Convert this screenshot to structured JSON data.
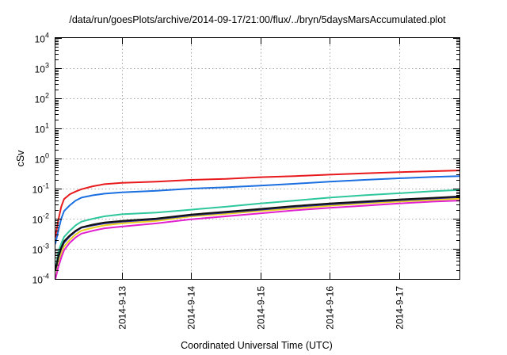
{
  "chart_data": {
    "type": "line",
    "title": "/data/run/goesPlots/archive/2014-09-17/21:00/flux/../bryn/5daysMarsAccumulated.plot",
    "xlabel": "Coordinated Universal Time (UTC)",
    "ylabel": "cSv",
    "yscale": "log",
    "xlim": [
      "2014-09-12T01:00",
      "2014-09-17T21:00"
    ],
    "ylim": [
      0.0001,
      10000
    ],
    "grid": true,
    "legend": "none",
    "y_ticks": [
      {
        "value": 0.0001,
        "base": "10",
        "exp": "-4"
      },
      {
        "value": 0.001,
        "base": "10",
        "exp": "-3"
      },
      {
        "value": 0.01,
        "base": "10",
        "exp": "-2"
      },
      {
        "value": 0.1,
        "base": "10",
        "exp": "-1"
      },
      {
        "value": 1,
        "base": "10",
        "exp": "0"
      },
      {
        "value": 10,
        "base": "10",
        "exp": "1"
      },
      {
        "value": 100,
        "base": "10",
        "exp": "2"
      },
      {
        "value": 1000,
        "base": "10",
        "exp": "3"
      },
      {
        "value": 10000,
        "base": "10",
        "exp": "4"
      }
    ],
    "x_ticks": [
      {
        "value": "2014-09-13T00:00",
        "label": "2014-9-13"
      },
      {
        "value": "2014-09-14T00:00",
        "label": "2014-9-14"
      },
      {
        "value": "2014-09-15T00:00",
        "label": "2014-9-15"
      },
      {
        "value": "2014-09-16T00:00",
        "label": "2014-9-16"
      },
      {
        "value": "2014-09-17T00:00",
        "label": "2014-9-17"
      }
    ],
    "series": [
      {
        "color": "#e8191c",
        "points": [
          [
            "2014-09-12T01:00",
            0.0025
          ],
          [
            "2014-09-12T02:00",
            0.009
          ],
          [
            "2014-09-12T03:00",
            0.025
          ],
          [
            "2014-09-12T04:00",
            0.045
          ],
          [
            "2014-09-12T06:00",
            0.065
          ],
          [
            "2014-09-12T08:00",
            0.08
          ],
          [
            "2014-09-12T10:00",
            0.095
          ],
          [
            "2014-09-12T14:00",
            0.12
          ],
          [
            "2014-09-12T18:00",
            0.14
          ],
          [
            "2014-09-13T00:00",
            0.155
          ],
          [
            "2014-09-13T12:00",
            0.17
          ],
          [
            "2014-09-14T00:00",
            0.195
          ],
          [
            "2014-09-14T12:00",
            0.21
          ],
          [
            "2014-09-15T00:00",
            0.24
          ],
          [
            "2014-09-15T12:00",
            0.26
          ],
          [
            "2014-09-16T00:00",
            0.29
          ],
          [
            "2014-09-16T12:00",
            0.32
          ],
          [
            "2014-09-17T00:00",
            0.35
          ],
          [
            "2014-09-17T12:00",
            0.38
          ],
          [
            "2014-09-17T21:00",
            0.4
          ]
        ]
      },
      {
        "color": "#1b6fe0",
        "points": [
          [
            "2014-09-12T01:00",
            0.0015
          ],
          [
            "2014-09-12T02:00",
            0.004
          ],
          [
            "2014-09-12T03:00",
            0.01
          ],
          [
            "2014-09-12T04:00",
            0.018
          ],
          [
            "2014-09-12T06:00",
            0.028
          ],
          [
            "2014-09-12T08:00",
            0.04
          ],
          [
            "2014-09-12T10:00",
            0.05
          ],
          [
            "2014-09-12T14:00",
            0.06
          ],
          [
            "2014-09-12T18:00",
            0.068
          ],
          [
            "2014-09-13T00:00",
            0.075
          ],
          [
            "2014-09-13T12:00",
            0.085
          ],
          [
            "2014-09-14T00:00",
            0.1
          ],
          [
            "2014-09-14T12:00",
            0.11
          ],
          [
            "2014-09-15T00:00",
            0.125
          ],
          [
            "2014-09-15T12:00",
            0.145
          ],
          [
            "2014-09-16T00:00",
            0.17
          ],
          [
            "2014-09-16T12:00",
            0.195
          ],
          [
            "2014-09-17T00:00",
            0.22
          ],
          [
            "2014-09-17T12:00",
            0.245
          ],
          [
            "2014-09-17T21:00",
            0.26
          ]
        ]
      },
      {
        "color": "#2ec79c",
        "points": [
          [
            "2014-09-12T01:00",
            0.0002
          ],
          [
            "2014-09-12T02:00",
            0.0008
          ],
          [
            "2014-09-12T03:00",
            0.0015
          ],
          [
            "2014-09-12T04:00",
            0.0025
          ],
          [
            "2014-09-12T06:00",
            0.004
          ],
          [
            "2014-09-12T08:00",
            0.006
          ],
          [
            "2014-09-12T10:00",
            0.008
          ],
          [
            "2014-09-12T14:00",
            0.01
          ],
          [
            "2014-09-12T18:00",
            0.012
          ],
          [
            "2014-09-13T00:00",
            0.014
          ],
          [
            "2014-09-13T12:00",
            0.016
          ],
          [
            "2014-09-14T00:00",
            0.02
          ],
          [
            "2014-09-14T12:00",
            0.025
          ],
          [
            "2014-09-15T00:00",
            0.032
          ],
          [
            "2014-09-15T12:00",
            0.04
          ],
          [
            "2014-09-16T00:00",
            0.05
          ],
          [
            "2014-09-16T12:00",
            0.06
          ],
          [
            "2014-09-17T00:00",
            0.07
          ],
          [
            "2014-09-17T12:00",
            0.082
          ],
          [
            "2014-09-17T21:00",
            0.09
          ]
        ]
      },
      {
        "color": "#e8d020",
        "points": [
          [
            "2014-09-12T01:00",
            0.0001
          ],
          [
            "2014-09-12T02:00",
            0.0003
          ],
          [
            "2014-09-12T03:00",
            0.0007
          ],
          [
            "2014-09-12T04:00",
            0.0012
          ],
          [
            "2014-09-12T06:00",
            0.002
          ],
          [
            "2014-09-12T08:00",
            0.003
          ],
          [
            "2014-09-12T10:00",
            0.004
          ],
          [
            "2014-09-12T14:00",
            0.005
          ],
          [
            "2014-09-12T18:00",
            0.006
          ],
          [
            "2014-09-13T00:00",
            0.007
          ],
          [
            "2014-09-13T12:00",
            0.0085
          ],
          [
            "2014-09-14T00:00",
            0.012
          ],
          [
            "2014-09-14T12:00",
            0.0145
          ],
          [
            "2014-09-15T00:00",
            0.018
          ],
          [
            "2014-09-15T12:00",
            0.022
          ],
          [
            "2014-09-16T00:00",
            0.027
          ],
          [
            "2014-09-16T12:00",
            0.032
          ],
          [
            "2014-09-17T00:00",
            0.037
          ],
          [
            "2014-09-17T12:00",
            0.042
          ],
          [
            "2014-09-17T21:00",
            0.046
          ]
        ]
      },
      {
        "color": "#e020d0",
        "points": [
          [
            "2014-09-12T01:00",
            0.0001
          ],
          [
            "2014-09-12T02:00",
            0.00025
          ],
          [
            "2014-09-12T03:00",
            0.0005
          ],
          [
            "2014-09-12T04:00",
            0.0009
          ],
          [
            "2014-09-12T06:00",
            0.0016
          ],
          [
            "2014-09-12T08:00",
            0.0024
          ],
          [
            "2014-09-12T10:00",
            0.0032
          ],
          [
            "2014-09-12T14:00",
            0.004
          ],
          [
            "2014-09-12T18:00",
            0.0048
          ],
          [
            "2014-09-13T00:00",
            0.0055
          ],
          [
            "2014-09-13T12:00",
            0.007
          ],
          [
            "2014-09-14T00:00",
            0.0095
          ],
          [
            "2014-09-14T12:00",
            0.012
          ],
          [
            "2014-09-15T00:00",
            0.015
          ],
          [
            "2014-09-15T12:00",
            0.019
          ],
          [
            "2014-09-16T00:00",
            0.023
          ],
          [
            "2014-09-16T12:00",
            0.027
          ],
          [
            "2014-09-17T00:00",
            0.032
          ],
          [
            "2014-09-17T12:00",
            0.037
          ],
          [
            "2014-09-17T21:00",
            0.04
          ]
        ]
      },
      {
        "color": "#2a2a9a",
        "points": [
          [
            "2014-09-12T01:00",
            0.0002
          ],
          [
            "2014-09-12T02:00",
            0.0005
          ],
          [
            "2014-09-12T03:00",
            0.001
          ],
          [
            "2014-09-12T04:00",
            0.0016
          ],
          [
            "2014-09-12T06:00",
            0.0026
          ],
          [
            "2014-09-12T08:00",
            0.0038
          ],
          [
            "2014-09-12T10:00",
            0.005
          ],
          [
            "2014-09-12T14:00",
            0.006
          ],
          [
            "2014-09-12T18:00",
            0.007
          ],
          [
            "2014-09-13T00:00",
            0.008
          ],
          [
            "2014-09-13T12:00",
            0.0095
          ],
          [
            "2014-09-14T00:00",
            0.013
          ],
          [
            "2014-09-14T12:00",
            0.016
          ],
          [
            "2014-09-15T00:00",
            0.02
          ],
          [
            "2014-09-15T12:00",
            0.025
          ],
          [
            "2014-09-16T00:00",
            0.03
          ],
          [
            "2014-09-16T12:00",
            0.035
          ],
          [
            "2014-09-17T00:00",
            0.041
          ],
          [
            "2014-09-17T12:00",
            0.047
          ],
          [
            "2014-09-17T21:00",
            0.052
          ]
        ]
      },
      {
        "color": "#111111",
        "points": [
          [
            "2014-09-12T01:00",
            0.0002
          ],
          [
            "2014-09-12T02:00",
            0.00055
          ],
          [
            "2014-09-12T03:00",
            0.0011
          ],
          [
            "2014-09-12T04:00",
            0.0018
          ],
          [
            "2014-09-12T06:00",
            0.0028
          ],
          [
            "2014-09-12T08:00",
            0.004
          ],
          [
            "2014-09-12T10:00",
            0.0052
          ],
          [
            "2014-09-12T14:00",
            0.0064
          ],
          [
            "2014-09-12T18:00",
            0.0075
          ],
          [
            "2014-09-13T00:00",
            0.0085
          ],
          [
            "2014-09-13T12:00",
            0.0102
          ],
          [
            "2014-09-14T00:00",
            0.0138
          ],
          [
            "2014-09-14T12:00",
            0.017
          ],
          [
            "2014-09-15T00:00",
            0.0212
          ],
          [
            "2014-09-15T12:00",
            0.0265
          ],
          [
            "2014-09-16T00:00",
            0.032
          ],
          [
            "2014-09-16T12:00",
            0.0375
          ],
          [
            "2014-09-17T00:00",
            0.0435
          ],
          [
            "2014-09-17T12:00",
            0.0495
          ],
          [
            "2014-09-17T21:00",
            0.055
          ]
        ]
      }
    ]
  }
}
